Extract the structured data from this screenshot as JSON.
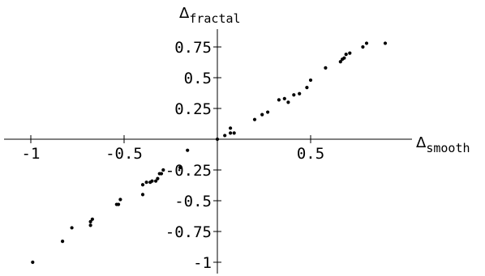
{
  "chart_data": {
    "type": "scatter",
    "title": "",
    "xlabel": {
      "symbol": "Δ",
      "subscript": "smooth"
    },
    "ylabel": {
      "symbol": "Δ",
      "subscript": "fractal"
    },
    "xlim": [
      -1.03,
      0.88
    ],
    "ylim": [
      -1.07,
      0.88
    ],
    "grid": false,
    "x_ticks": [
      {
        "value": -1,
        "label": "-1"
      },
      {
        "value": -0.5,
        "label": "-0.5"
      },
      {
        "value": 0.5,
        "label": "0.5"
      }
    ],
    "y_ticks": [
      {
        "value": 0.75,
        "label": "0.75"
      },
      {
        "value": 0.5,
        "label": "0.5"
      },
      {
        "value": 0.25,
        "label": "0.25"
      },
      {
        "value": -0.25,
        "label": "-0.25"
      },
      {
        "value": -0.5,
        "label": "-0.5"
      },
      {
        "value": -0.75,
        "label": "-0.75"
      },
      {
        "value": -1,
        "label": "-1"
      }
    ],
    "points": [
      {
        "x": -0.99,
        "y": -1.0
      },
      {
        "x": -0.83,
        "y": -0.83
      },
      {
        "x": -0.78,
        "y": -0.72
      },
      {
        "x": -0.68,
        "y": -0.7
      },
      {
        "x": -0.68,
        "y": -0.67
      },
      {
        "x": -0.67,
        "y": -0.65
      },
      {
        "x": -0.54,
        "y": -0.53
      },
      {
        "x": -0.53,
        "y": -0.53
      },
      {
        "x": -0.52,
        "y": -0.49
      },
      {
        "x": -0.4,
        "y": -0.45
      },
      {
        "x": -0.4,
        "y": -0.37
      },
      {
        "x": -0.38,
        "y": -0.35
      },
      {
        "x": -0.36,
        "y": -0.35
      },
      {
        "x": -0.35,
        "y": -0.34
      },
      {
        "x": -0.33,
        "y": -0.34
      },
      {
        "x": -0.32,
        "y": -0.32
      },
      {
        "x": -0.31,
        "y": -0.28
      },
      {
        "x": -0.3,
        "y": -0.28
      },
      {
        "x": -0.29,
        "y": -0.25
      },
      {
        "x": -0.2,
        "y": -0.23
      },
      {
        "x": -0.16,
        "y": -0.09
      },
      {
        "x": 0.0,
        "y": 0.0
      },
      {
        "x": 0.04,
        "y": 0.03
      },
      {
        "x": 0.07,
        "y": 0.05
      },
      {
        "x": 0.07,
        "y": 0.09
      },
      {
        "x": 0.09,
        "y": 0.05
      },
      {
        "x": 0.2,
        "y": 0.16
      },
      {
        "x": 0.24,
        "y": 0.2
      },
      {
        "x": 0.27,
        "y": 0.22
      },
      {
        "x": 0.33,
        "y": 0.32
      },
      {
        "x": 0.36,
        "y": 0.33
      },
      {
        "x": 0.38,
        "y": 0.3
      },
      {
        "x": 0.41,
        "y": 0.36
      },
      {
        "x": 0.44,
        "y": 0.37
      },
      {
        "x": 0.48,
        "y": 0.42
      },
      {
        "x": 0.5,
        "y": 0.48
      },
      {
        "x": 0.58,
        "y": 0.58
      },
      {
        "x": 0.66,
        "y": 0.63
      },
      {
        "x": 0.67,
        "y": 0.65
      },
      {
        "x": 0.68,
        "y": 0.66
      },
      {
        "x": 0.69,
        "y": 0.69
      },
      {
        "x": 0.71,
        "y": 0.7
      },
      {
        "x": 0.78,
        "y": 0.75
      },
      {
        "x": 0.8,
        "y": 0.78
      },
      {
        "x": 0.9,
        "y": 0.78
      }
    ]
  }
}
